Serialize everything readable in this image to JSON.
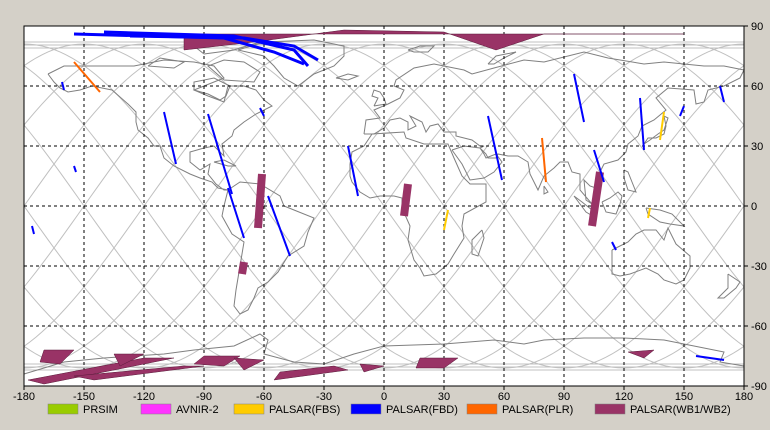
{
  "map": {
    "projection": "equirectangular",
    "lon_range": [
      -180,
      180
    ],
    "lat_range": [
      -90,
      90
    ],
    "lon_ticks": [
      "-180",
      "-150",
      "-120",
      "-90",
      "-60",
      "-30",
      "0",
      "30",
      "60",
      "90",
      "120",
      "150",
      "180"
    ],
    "lat_ticks": [
      "90",
      "60",
      "30",
      "0",
      "-30",
      "-60",
      "-90"
    ],
    "grid": "dashed black every 30 degrees",
    "background": "#ffffff",
    "coastline_color": "#808080",
    "orbit_track_color": "#c0c0c0"
  },
  "legend": [
    {
      "label": "PRSIM",
      "color": "#99cc00"
    },
    {
      "label": "AVNIR-2",
      "color": "#ff33ff"
    },
    {
      "label": "PALSAR(FBS)",
      "color": "#ffcc00"
    },
    {
      "label": "PALSAR(FBD)",
      "color": "#0000ff"
    },
    {
      "label": "PALSAR(PLR)",
      "color": "#ff6600"
    },
    {
      "label": "PALSAR(WB1/WB2)",
      "color": "#993366"
    }
  ],
  "swaths": {
    "FBD": [
      [
        [
          -161,
          62
        ],
        [
          -160,
          58
        ]
      ],
      [
        [
          -155,
          20
        ],
        [
          -154,
          17
        ]
      ],
      [
        [
          -176,
          -10
        ],
        [
          -175,
          -14
        ]
      ],
      [
        [
          -110,
          47
        ],
        [
          -104,
          21
        ]
      ],
      [
        [
          -88,
          46
        ],
        [
          -76,
          6
        ]
      ],
      [
        [
          -78,
          9
        ],
        [
          -70,
          -16
        ]
      ],
      [
        [
          -62,
          49
        ],
        [
          -60,
          45
        ]
      ],
      [
        [
          -58,
          5
        ],
        [
          -47,
          -25
        ]
      ],
      [
        [
          -18,
          30
        ],
        [
          -13,
          5
        ]
      ],
      [
        [
          52,
          45
        ],
        [
          59,
          13
        ]
      ],
      [
        [
          95,
          66
        ],
        [
          100,
          42
        ]
      ],
      [
        [
          105,
          28
        ],
        [
          110,
          12
        ]
      ],
      [
        [
          128,
          54
        ],
        [
          130,
          28
        ]
      ],
      [
        [
          150,
          50
        ],
        [
          148,
          45
        ]
      ],
      [
        [
          168,
          60
        ],
        [
          170,
          52
        ]
      ],
      [
        [
          114,
          -18
        ],
        [
          116,
          -22
        ]
      ],
      [
        [
          156,
          -75
        ],
        [
          170,
          -77
        ]
      ]
    ],
    "FBS": [
      [
        [
          140,
          47
        ],
        [
          138,
          33
        ]
      ],
      [
        [
          32,
          -2
        ],
        [
          30,
          -12
        ]
      ],
      [
        [
          133,
          -1
        ],
        [
          132,
          -6
        ]
      ]
    ],
    "PLR": [
      [
        [
          -155,
          72
        ],
        [
          -142,
          57
        ]
      ],
      [
        [
          79,
          34
        ],
        [
          81,
          12
        ]
      ]
    ],
    "WB": [
      [
        [
          -61,
          16
        ],
        [
          -63,
          -11
        ]
      ],
      [
        [
          -70,
          -28
        ],
        [
          -71,
          -34
        ]
      ],
      [
        [
          12,
          11
        ],
        [
          10,
          -5
        ]
      ],
      [
        [
          108,
          17
        ],
        [
          104,
          -10
        ]
      ]
    ],
    "FBD_arcs": [
      [
        [
          -127,
          85
        ],
        [
          -70,
          84
        ],
        [
          -45,
          80
        ],
        [
          -33,
          73
        ]
      ],
      [
        [
          -140,
          87
        ],
        [
          -75,
          85
        ],
        [
          -45,
          78
        ],
        [
          -38,
          70
        ]
      ],
      [
        [
          -155,
          86
        ],
        [
          -80,
          84
        ],
        [
          -55,
          77
        ],
        [
          -40,
          71
        ]
      ]
    ],
    "WB_polar_north": [
      [
        -100,
        78
      ],
      [
        -65,
        82
      ],
      [
        -20,
        88
      ],
      [
        30,
        87
      ],
      [
        56,
        78
      ],
      [
        80,
        86
      ],
      [
        150,
        86
      ],
      [
        -100,
        86
      ]
    ],
    "WB_polar_south": [
      [
        [
          -170,
          -72
        ],
        [
          -155,
          -72
        ],
        [
          -162,
          -79
        ],
        [
          -172,
          -78
        ]
      ],
      [
        [
          -178,
          -87
        ],
        [
          -120,
          -76
        ],
        [
          -105,
          -76
        ],
        [
          -170,
          -89
        ]
      ],
      [
        [
          -155,
          -85
        ],
        [
          -100,
          -80
        ],
        [
          -90,
          -80
        ],
        [
          -145,
          -87
        ]
      ],
      [
        [
          -135,
          -74
        ],
        [
          -120,
          -74
        ],
        [
          -132,
          -80
        ]
      ],
      [
        [
          -90,
          -75
        ],
        [
          -72,
          -75
        ],
        [
          -80,
          -80
        ],
        [
          -95,
          -79
        ]
      ],
      [
        [
          -75,
          -76
        ],
        [
          -60,
          -77
        ],
        [
          -70,
          -82
        ]
      ],
      [
        [
          -52,
          -83
        ],
        [
          -25,
          -80
        ],
        [
          -18,
          -82
        ],
        [
          -55,
          -87
        ]
      ],
      [
        [
          -12,
          -79
        ],
        [
          0,
          -80
        ],
        [
          -10,
          -83
        ]
      ],
      [
        [
          18,
          -76
        ],
        [
          37,
          -76
        ],
        [
          30,
          -81
        ],
        [
          16,
          -81
        ]
      ],
      [
        [
          122,
          -73
        ],
        [
          135,
          -72
        ],
        [
          130,
          -76
        ]
      ]
    ]
  }
}
